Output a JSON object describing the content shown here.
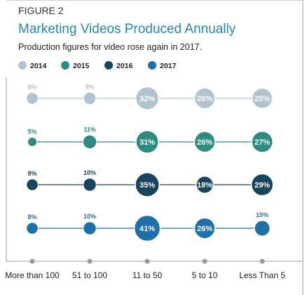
{
  "chart_data": {
    "type": "bubble-dot-plot",
    "figure_label": "FIGURE 2",
    "title": "Marketing Videos Produced Annually",
    "subtitle": "Production figures for video rose again in 2017.",
    "categories": [
      "More than 100",
      "51 to 100",
      "11 to 50",
      "5 to 10",
      "Less Than 5"
    ],
    "unit": "%",
    "legend_position": "top-left",
    "series": [
      {
        "name": "2014",
        "color": "#b0c4cf",
        "values": [
          8,
          9,
          32,
          26,
          25
        ]
      },
      {
        "name": "2015",
        "color": "#2e8b82",
        "values": [
          5,
          11,
          31,
          26,
          27
        ]
      },
      {
        "name": "2016",
        "color": "#17455e",
        "values": [
          8,
          10,
          35,
          18,
          29
        ]
      },
      {
        "name": "2017",
        "color": "#1f6fa8",
        "values": [
          8,
          10,
          41,
          26,
          15
        ]
      }
    ],
    "colors": {
      "frame": "#9aa0a6",
      "title": "#2a86a8",
      "figure_label": "#333333",
      "axis_dot": "#9a9a9a",
      "text": "#222222"
    }
  }
}
